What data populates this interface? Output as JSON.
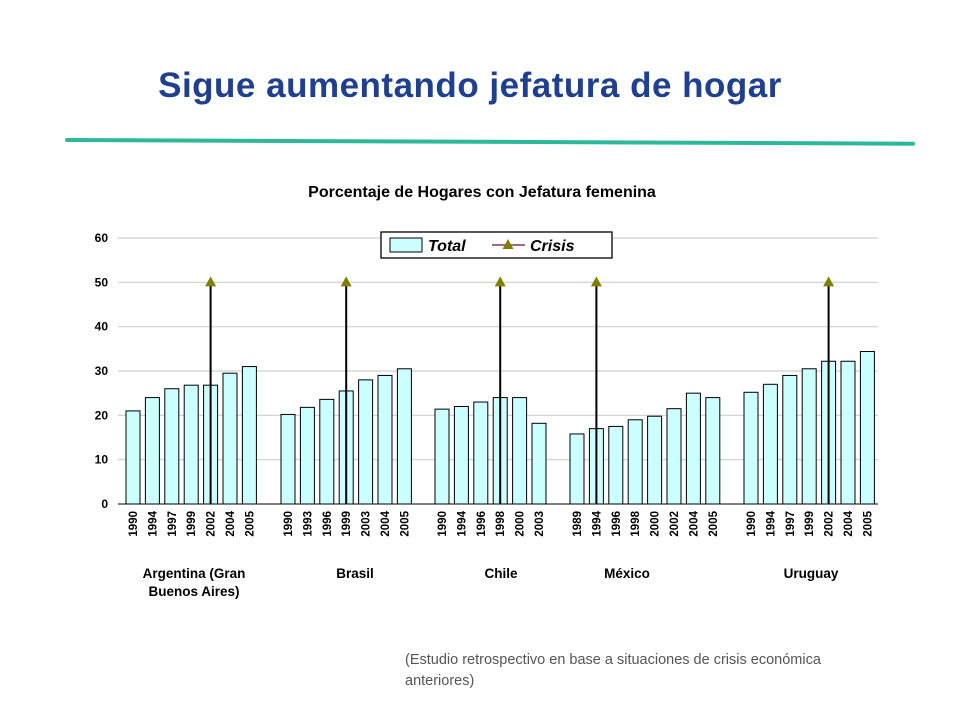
{
  "slide": {
    "title": "Sigue aumentando jefatura de hogar",
    "footnote": "(Estudio retrospectivo en base a  situaciones de crisis económica anteriores)"
  },
  "colors": {
    "title": "#1F3F8F",
    "rule": "#2EB89A",
    "bar_fill": "#CCFFFF",
    "bar_stroke": "#000000",
    "crisis_marker": "#808000",
    "crisis_line": "#000000"
  },
  "chart_data": {
    "type": "bar",
    "title": "Porcentaje de Hogares con Jefatura femenina",
    "ylim": [
      0,
      60
    ],
    "yticks": [
      0,
      10,
      20,
      30,
      40,
      50,
      60
    ],
    "grid": true,
    "legend_position": "top-right",
    "legend": [
      {
        "label": "Total",
        "kind": "bar"
      },
      {
        "label": "Crisis",
        "kind": "line-triangle"
      }
    ],
    "crisis_level": 50,
    "groups": [
      {
        "name": [
          "Argentina (Gran",
          "Buenos Aires)"
        ],
        "years": [
          "1990",
          "1994",
          "1997",
          "1999",
          "2002",
          "2004",
          "2005"
        ],
        "values": [
          21,
          24,
          26,
          26.8,
          26.8,
          29.5,
          31
        ],
        "crisis_year": "2002"
      },
      {
        "name": [
          "Brasil"
        ],
        "years": [
          "1990",
          "1993",
          "1996",
          "1999",
          "2003",
          "2004",
          "2005"
        ],
        "values": [
          20.2,
          21.8,
          23.6,
          25.5,
          28,
          29,
          30.5
        ],
        "crisis_year": "1999"
      },
      {
        "name": [
          "Chile"
        ],
        "years": [
          "1990",
          "1994",
          "1996",
          "1998",
          "2000",
          "2003"
        ],
        "values": [
          21.4,
          22,
          23,
          24,
          24,
          18.2
        ],
        "crisis_year": "1998"
      },
      {
        "name": [
          "México"
        ],
        "years": [
          "1989",
          "1994",
          "1996",
          "1998",
          "2000",
          "2002",
          "2004",
          "2005"
        ],
        "values": [
          15.8,
          17,
          17.5,
          19,
          19.8,
          21.5,
          25,
          24
        ],
        "crisis_year": "1994"
      },
      {
        "name": [
          "Uruguay"
        ],
        "years": [
          "1990",
          "1994",
          "1997",
          "1999",
          "2002",
          "2004",
          "2005"
        ],
        "values": [
          25.2,
          27,
          29,
          30.5,
          32.2,
          32.2,
          34.4
        ],
        "crisis_year": "2002"
      }
    ]
  }
}
